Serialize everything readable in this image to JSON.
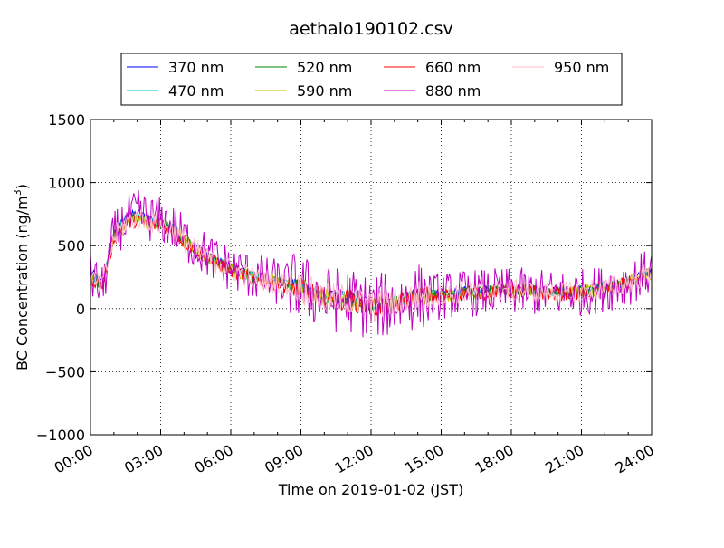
{
  "chart_data": {
    "type": "line",
    "title": "aethalo190102.csv",
    "xlabel": "Time on 2019-01-02 (JST)",
    "ylabel": "BC Concentration (ng/m³)",
    "ylabel_main": "BC Concentration (ng/m",
    "ylabel_sup": "3",
    "ylabel_end": ")",
    "xlim": [
      0,
      24
    ],
    "ylim": [
      -1000,
      1500
    ],
    "grid": true,
    "legend_position": "top-center",
    "x_ticks": [
      {
        "value": 0,
        "label": "00:00"
      },
      {
        "value": 3,
        "label": "03:00"
      },
      {
        "value": 6,
        "label": "06:00"
      },
      {
        "value": 9,
        "label": "09:00"
      },
      {
        "value": 12,
        "label": "12:00"
      },
      {
        "value": 15,
        "label": "15:00"
      },
      {
        "value": 18,
        "label": "18:00"
      },
      {
        "value": 21,
        "label": "21:00"
      },
      {
        "value": 24,
        "label": "24:00"
      }
    ],
    "y_ticks": [
      {
        "value": -1000,
        "label": "−1000"
      },
      {
        "value": -500,
        "label": "−500"
      },
      {
        "value": 0,
        "label": "0"
      },
      {
        "value": 500,
        "label": "500"
      },
      {
        "value": 1000,
        "label": "1000"
      },
      {
        "value": 1500,
        "label": "1500"
      }
    ],
    "series": [
      {
        "name": "370 nm",
        "color": "#0000ff",
        "noise": 35,
        "x": [
          0,
          0.5,
          1,
          1.5,
          2,
          2.5,
          3,
          3.5,
          4,
          5,
          6,
          7,
          8,
          9,
          10,
          11,
          12,
          13,
          14,
          15,
          16,
          17,
          18,
          19,
          20,
          21,
          22,
          23,
          24
        ],
        "y": [
          300,
          200,
          600,
          720,
          760,
          720,
          700,
          650,
          560,
          420,
          330,
          260,
          220,
          180,
          100,
          90,
          30,
          60,
          120,
          120,
          140,
          150,
          160,
          150,
          140,
          150,
          180,
          220,
          300
        ]
      },
      {
        "name": "470 nm",
        "color": "#00bfbf",
        "noise": 40,
        "x": [
          0,
          0.5,
          1,
          1.5,
          2,
          2.5,
          3,
          3.5,
          4,
          5,
          6,
          7,
          8,
          9,
          10,
          11,
          12,
          13,
          14,
          15,
          16,
          17,
          18,
          19,
          20,
          21,
          22,
          23,
          24
        ],
        "y": [
          280,
          190,
          590,
          700,
          740,
          700,
          690,
          640,
          550,
          410,
          320,
          255,
          215,
          175,
          95,
          85,
          25,
          55,
          115,
          115,
          135,
          145,
          155,
          145,
          135,
          145,
          175,
          215,
          295
        ]
      },
      {
        "name": "520 nm",
        "color": "#008000",
        "noise": 45,
        "x": [
          0,
          0.5,
          1,
          1.5,
          2,
          2.5,
          3,
          3.5,
          4,
          5,
          6,
          7,
          8,
          9,
          10,
          11,
          12,
          13,
          14,
          15,
          16,
          17,
          18,
          19,
          20,
          21,
          22,
          23,
          24
        ],
        "y": [
          270,
          185,
          580,
          690,
          730,
          690,
          680,
          630,
          545,
          405,
          315,
          250,
          210,
          170,
          90,
          80,
          20,
          50,
          110,
          110,
          130,
          140,
          150,
          140,
          130,
          140,
          170,
          210,
          290
        ]
      },
      {
        "name": "590 nm",
        "color": "#bfbf00",
        "noise": 55,
        "x": [
          0,
          0.5,
          1,
          1.5,
          2,
          2.5,
          3,
          3.5,
          4,
          5,
          6,
          7,
          8,
          9,
          10,
          11,
          12,
          13,
          14,
          15,
          16,
          17,
          18,
          19,
          20,
          21,
          22,
          23,
          24
        ],
        "y": [
          260,
          180,
          570,
          680,
          720,
          680,
          670,
          620,
          540,
          400,
          310,
          245,
          205,
          165,
          85,
          75,
          15,
          45,
          105,
          105,
          125,
          135,
          145,
          135,
          125,
          135,
          165,
          205,
          285
        ]
      },
      {
        "name": "660 nm",
        "color": "#ff0000",
        "noise": 60,
        "x": [
          0,
          0.5,
          1,
          1.5,
          2,
          2.5,
          3,
          3.5,
          4,
          5,
          6,
          7,
          8,
          9,
          10,
          11,
          12,
          13,
          14,
          15,
          16,
          17,
          18,
          19,
          20,
          21,
          22,
          23,
          24
        ],
        "y": [
          250,
          175,
          560,
          670,
          710,
          670,
          660,
          610,
          535,
          395,
          305,
          240,
          200,
          160,
          80,
          70,
          10,
          40,
          100,
          100,
          120,
          130,
          140,
          130,
          120,
          130,
          160,
          200,
          280
        ]
      },
      {
        "name": "880 nm",
        "color": "#bf00bf",
        "noise": 190,
        "x": [
          0,
          0.5,
          1,
          1.5,
          2,
          2.5,
          3,
          3.5,
          4,
          5,
          6,
          7,
          8,
          9,
          10,
          11,
          12,
          13,
          14,
          15,
          16,
          17,
          18,
          19,
          20,
          21,
          22,
          23,
          24
        ],
        "y": [
          260,
          150,
          580,
          700,
          760,
          720,
          700,
          650,
          560,
          420,
          320,
          250,
          210,
          170,
          80,
          70,
          10,
          40,
          100,
          100,
          120,
          130,
          140,
          130,
          120,
          130,
          160,
          210,
          300
        ]
      },
      {
        "name": "950 nm",
        "color": "#ffc0cb",
        "noise": 90,
        "x": [
          0,
          0.5,
          1,
          1.5,
          2,
          2.5,
          3,
          3.5,
          4,
          5,
          6,
          7,
          8,
          9,
          10,
          11,
          12,
          13,
          14,
          15,
          16,
          17,
          18,
          19,
          20,
          21,
          22,
          23,
          24
        ],
        "y": [
          240,
          170,
          560,
          680,
          720,
          690,
          670,
          620,
          540,
          400,
          310,
          245,
          205,
          165,
          85,
          75,
          10,
          45,
          105,
          105,
          125,
          135,
          145,
          135,
          125,
          135,
          165,
          205,
          285
        ]
      }
    ]
  }
}
